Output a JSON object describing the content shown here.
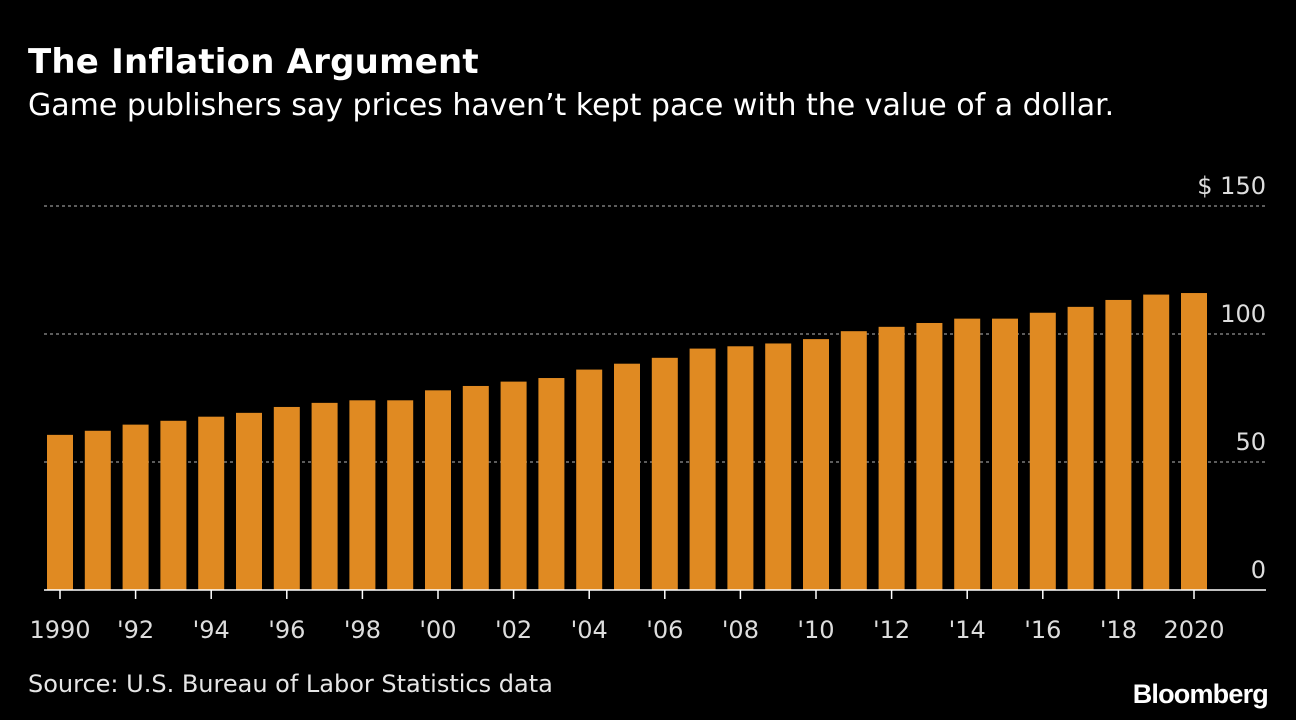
{
  "title": "The Inflation Argument",
  "subtitle": "Game publishers say prices haven’t kept pace with the value of a dollar.",
  "source": "Source: U.S. Bureau of Labor Statistics data",
  "logo": "Bloomberg",
  "colors": {
    "background": "#000000",
    "bar": "#e08a22",
    "grid": "#7a7a7a",
    "text": "#ffffff"
  },
  "chart_data": {
    "type": "bar",
    "x": [
      1990,
      1991,
      1992,
      1993,
      1994,
      1995,
      1996,
      1997,
      1998,
      1999,
      2000,
      2001,
      2002,
      2003,
      2004,
      2005,
      2006,
      2007,
      2008,
      2009,
      2010,
      2011,
      2012,
      2013,
      2014,
      2015,
      2016,
      2017,
      2018,
      2019,
      2020
    ],
    "values": [
      60.6,
      62.2,
      64.6,
      66.1,
      67.7,
      69.2,
      71.5,
      73.1,
      74.1,
      74.1,
      78.0,
      79.7,
      81.4,
      82.8,
      86.1,
      88.4,
      90.7,
      94.3,
      95.2,
      96.3,
      98.0,
      101.1,
      102.8,
      104.3,
      106.0,
      106.0,
      108.3,
      110.6,
      113.3,
      115.4,
      116.0
    ],
    "x_tick_labels": [
      "1990",
      "'92",
      "'94",
      "'96",
      "'98",
      "'00",
      "'02",
      "'04",
      "'06",
      "'08",
      "'10",
      "'12",
      "'14",
      "'16",
      "'18",
      "2020"
    ],
    "y_ticks": [
      0,
      50,
      100,
      150
    ],
    "y_tick_labels": [
      "0",
      "50",
      "100",
      "$ 150"
    ],
    "ylim": [
      0,
      150
    ],
    "xlabel": "",
    "ylabel": "",
    "grid": true
  }
}
